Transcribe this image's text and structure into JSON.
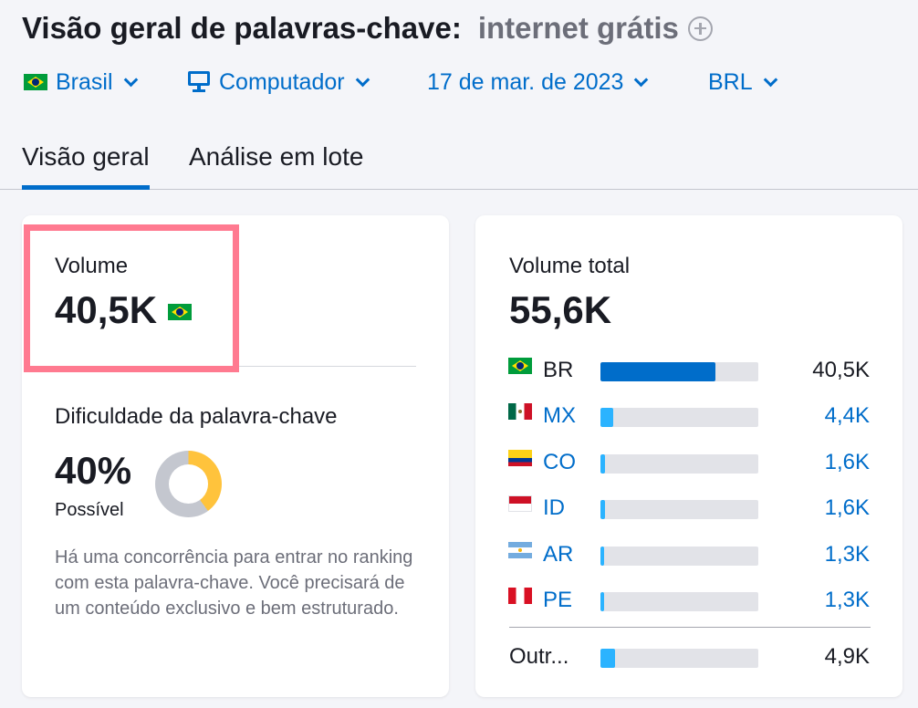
{
  "header": {
    "title": "Visão geral de palavras-chave:",
    "keyword": "internet grátis"
  },
  "filters": {
    "country": "Brasil",
    "device": "Computador",
    "date": "17 de mar. de 2023",
    "currency": "BRL"
  },
  "tabs": [
    {
      "label": "Visão geral",
      "active": true
    },
    {
      "label": "Análise em lote",
      "active": false
    }
  ],
  "volume_card": {
    "label": "Volume",
    "value": "40,5K",
    "difficulty_label": "Dificuldade da palavra-chave",
    "difficulty_value": "40%",
    "difficulty_percent": 40,
    "difficulty_status": "Possível",
    "difficulty_description": "Há uma concorrência para entrar no ranking com esta palavra-chave. Você precisará de um conteúdo exclusivo e bem estruturado."
  },
  "total_card": {
    "label": "Volume total",
    "value": "55,6K",
    "rows": [
      {
        "code": "BR",
        "value": "40,5K",
        "share": 0.73,
        "flag": "flag-br",
        "link": false,
        "color": "#006dca"
      },
      {
        "code": "MX",
        "value": "4,4K",
        "share": 0.08,
        "flag": "flag-mx",
        "link": true,
        "color": "#2bb3ff"
      },
      {
        "code": "CO",
        "value": "1,6K",
        "share": 0.03,
        "flag": "flag-co",
        "link": true,
        "color": "#2bb3ff"
      },
      {
        "code": "ID",
        "value": "1,6K",
        "share": 0.03,
        "flag": "flag-id",
        "link": true,
        "color": "#2bb3ff"
      },
      {
        "code": "AR",
        "value": "1,3K",
        "share": 0.023,
        "flag": "flag-ar",
        "link": true,
        "color": "#2bb3ff"
      },
      {
        "code": "PE",
        "value": "1,3K",
        "share": 0.023,
        "flag": "flag-pe",
        "link": true,
        "color": "#2bb3ff"
      }
    ],
    "other": {
      "label": "Outr...",
      "value": "4,9K",
      "share": 0.09,
      "color": "#2bb3ff"
    }
  },
  "colors": {
    "accent": "#006dca",
    "highlight_border": "#ff7a90",
    "difficulty": "#ffc33c"
  }
}
